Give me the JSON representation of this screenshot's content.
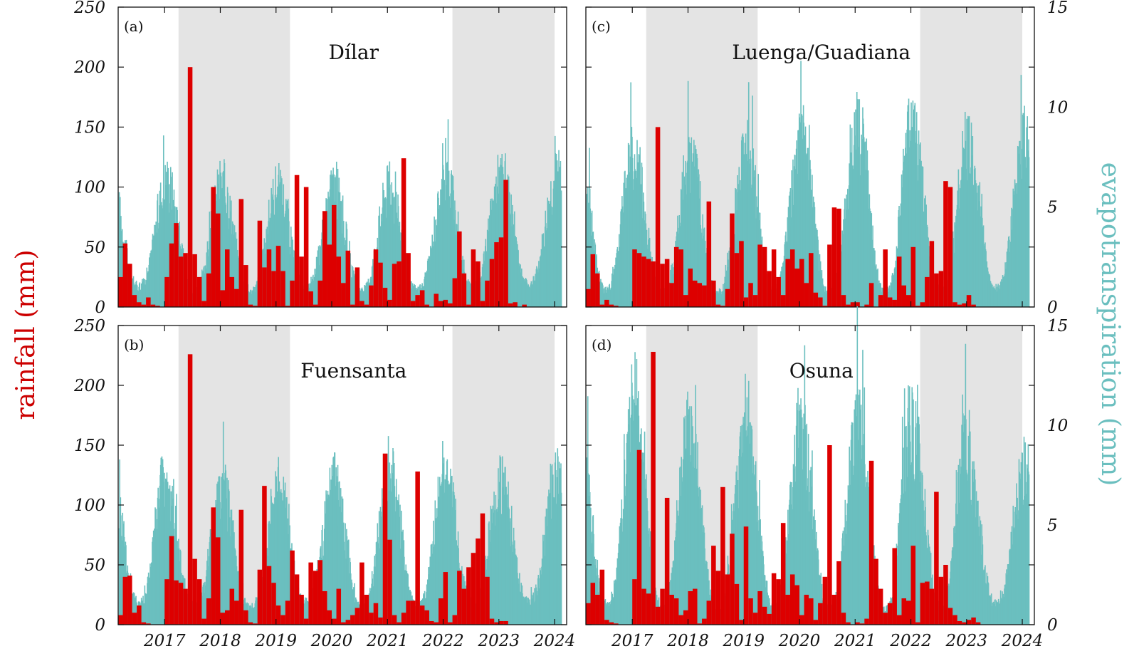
{
  "colors": {
    "rainfall": "#dd0000",
    "evapotranspiration": "#6bbfbf",
    "shade": "#e4e4e4"
  },
  "axes": {
    "left_title": "rainfall (mm)",
    "right_title": "evapotranspiration (mm)",
    "left_ticks": [
      "250",
      "200",
      "150",
      "100",
      "50",
      "0"
    ],
    "right_ticks": [
      "15",
      "10",
      "5",
      "0"
    ]
  },
  "chart_data": [
    {
      "type": "bar",
      "panel": "(a)",
      "title": "Dílar",
      "x_labels": [
        "2017",
        "2018",
        "2019",
        "2020",
        "2021",
        "2022",
        "2023",
        "2024"
      ],
      "ylim_rainfall": [
        0,
        250
      ],
      "ylim_evapotranspiration": [
        0,
        15
      ],
      "shaded_periods": [
        [
          "2017-10",
          "2019-10"
        ],
        [
          "2022-09",
          "2024-07"
        ]
      ],
      "rainfall_series": {
        "name": "rainfall",
        "start": "2016-09",
        "monthly_mm": [
          25,
          53,
          36,
          10,
          4,
          2,
          8,
          2,
          1,
          0,
          25,
          53,
          70,
          42,
          45,
          200,
          44,
          25,
          5,
          28,
          100,
          78,
          14,
          48,
          25,
          15,
          90,
          35,
          2,
          1,
          72,
          33,
          48,
          30,
          51,
          30,
          1,
          22,
          110,
          42,
          100,
          13,
          2,
          22,
          80,
          52,
          85,
          42,
          20,
          47,
          2,
          33,
          5,
          2,
          18,
          48,
          37,
          16,
          6,
          36,
          38,
          124,
          45,
          5,
          10,
          14,
          2,
          0,
          11,
          5,
          6,
          3,
          24,
          63,
          28,
          2,
          48,
          38,
          5,
          22,
          40,
          54,
          58,
          106,
          3,
          4,
          0,
          2,
          0,
          0
        ]
      },
      "evapotranspiration_series": {
        "name": "evapotranspiration",
        "peaks_mm": [
          7.1,
          7.3,
          7.0,
          6.8,
          7.0,
          6.9,
          7.6,
          7.5
        ],
        "troughs_mm": [
          1.2,
          1.0,
          0.9,
          1.1,
          1.0,
          1.0,
          1.2,
          1.3
        ]
      }
    },
    {
      "type": "bar",
      "panel": "(b)",
      "title": "Fuensanta",
      "x_labels": [
        "2017",
        "2018",
        "2019",
        "2020",
        "2021",
        "2022",
        "2023",
        "2024"
      ],
      "ylim_rainfall": [
        0,
        250
      ],
      "ylim_evapotranspiration": [
        0,
        15
      ],
      "shaded_periods": [
        [
          "2017-10",
          "2019-10"
        ],
        [
          "2022-09",
          "2024-07"
        ]
      ],
      "rainfall_series": {
        "name": "rainfall",
        "start": "2016-09",
        "monthly_mm": [
          8,
          40,
          41,
          10,
          16,
          2,
          1,
          0,
          0,
          0,
          38,
          74,
          37,
          35,
          30,
          226,
          55,
          38,
          5,
          22,
          98,
          73,
          10,
          12,
          30,
          20,
          96,
          12,
          2,
          1,
          46,
          116,
          49,
          35,
          16,
          8,
          20,
          62,
          42,
          25,
          5,
          52,
          45,
          54,
          28,
          12,
          5,
          30,
          2,
          4,
          8,
          14,
          52,
          25,
          10,
          18,
          6,
          143,
          71,
          8,
          2,
          10,
          20,
          20,
          128,
          16,
          12,
          3,
          2,
          22,
          44,
          2,
          8,
          45,
          30,
          48,
          60,
          72,
          93,
          40,
          5,
          2,
          3,
          3,
          0,
          0,
          0,
          0,
          0,
          0
        ]
      },
      "evapotranspiration_series": {
        "name": "evapotranspiration",
        "peaks_mm": [
          9.1,
          7.4,
          7.8,
          7.9,
          8.3,
          9.0,
          8.3,
          8.3
        ],
        "troughs_mm": [
          1.3,
          1.1,
          1.0,
          1.2,
          1.1,
          1.1,
          1.3,
          1.4
        ]
      }
    },
    {
      "type": "bar",
      "panel": "(c)",
      "title": "Luenga/Guadiana",
      "x_labels": [
        "2017",
        "2018",
        "2019",
        "2020",
        "2021",
        "2022",
        "2023",
        "2024"
      ],
      "ylim_rainfall": [
        0,
        250
      ],
      "ylim_evapotranspiration": [
        0,
        15
      ],
      "shaded_periods": [
        [
          "2017-10",
          "2019-10"
        ],
        [
          "2022-09",
          "2024-07"
        ]
      ],
      "rainfall_series": {
        "name": "rainfall",
        "start": "2016-09",
        "monthly_mm": [
          15,
          44,
          28,
          2,
          6,
          2,
          1,
          0,
          0,
          0,
          48,
          45,
          42,
          40,
          38,
          150,
          36,
          40,
          20,
          50,
          48,
          10,
          32,
          22,
          20,
          18,
          88,
          22,
          2,
          1,
          15,
          78,
          45,
          55,
          8,
          20,
          10,
          52,
          50,
          30,
          48,
          25,
          10,
          40,
          48,
          32,
          40,
          20,
          45,
          12,
          8,
          1,
          52,
          83,
          82,
          10,
          2,
          4,
          4,
          0,
          2,
          20,
          0,
          10,
          48,
          8,
          6,
          42,
          18,
          10,
          50,
          1,
          4,
          25,
          55,
          28,
          30,
          105,
          100,
          4,
          2,
          3,
          10,
          2,
          0,
          0,
          0,
          0,
          0,
          0
        ]
      },
      "evapotranspiration_series": {
        "name": "evapotranspiration",
        "peaks_mm": [
          9.3,
          8.4,
          8.8,
          9.5,
          9.6,
          10.8,
          9.8,
          9.2
        ],
        "troughs_mm": [
          1.0,
          0.9,
          0.8,
          1.0,
          0.9,
          0.9,
          1.0,
          1.1
        ]
      }
    },
    {
      "type": "bar",
      "panel": "(d)",
      "title": "Osuna",
      "x_labels": [
        "2017",
        "2018",
        "2019",
        "2020",
        "2021",
        "2022",
        "2023",
        "2024"
      ],
      "ylim_rainfall": [
        0,
        250
      ],
      "ylim_evapotranspiration": [
        0,
        15
      ],
      "shaded_periods": [
        [
          "2017-10",
          "2019-10"
        ],
        [
          "2022-09",
          "2024-07"
        ]
      ],
      "rainfall_series": {
        "name": "rainfall",
        "start": "2016-09",
        "monthly_mm": [
          18,
          35,
          25,
          46,
          4,
          2,
          1,
          0,
          0,
          0,
          38,
          146,
          30,
          26,
          228,
          15,
          30,
          106,
          25,
          22,
          8,
          12,
          28,
          30,
          1,
          5,
          20,
          66,
          45,
          115,
          42,
          76,
          34,
          4,
          82,
          22,
          10,
          28,
          15,
          9,
          43,
          38,
          85,
          25,
          42,
          33,
          8,
          25,
          22,
          4,
          18,
          40,
          150,
          25,
          53,
          10,
          2,
          0,
          2,
          1,
          5,
          137,
          55,
          30,
          10,
          18,
          64,
          8,
          22,
          20,
          66,
          2,
          35,
          36,
          30,
          111,
          40,
          50,
          14,
          8,
          3,
          2,
          4,
          6,
          2,
          0,
          0,
          0,
          0,
          0
        ]
      },
      "evapotranspiration_series": {
        "name": "evapotranspiration",
        "peaks_mm": [
          12.2,
          11.4,
          11.0,
          11.8,
          10.9,
          12.5,
          11.4,
          9.0
        ],
        "troughs_mm": [
          1.1,
          0.9,
          0.8,
          1.0,
          0.9,
          0.9,
          1.0,
          1.2
        ]
      }
    }
  ]
}
